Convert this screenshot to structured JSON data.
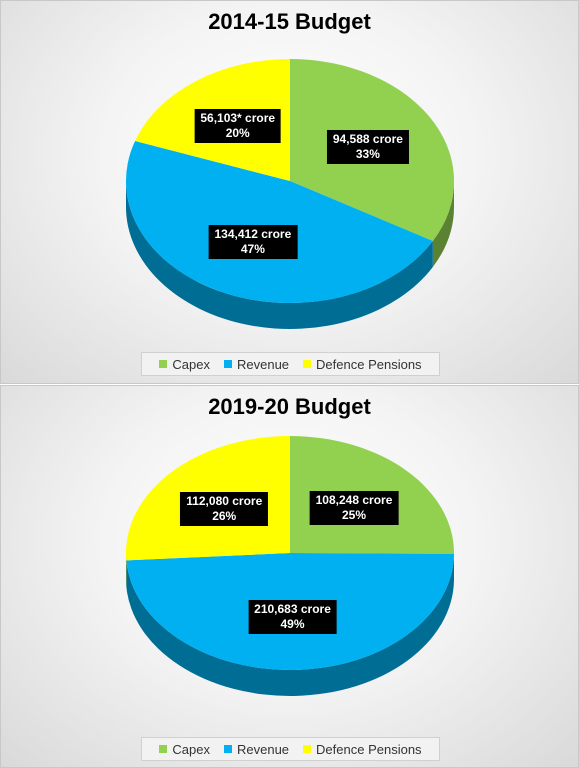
{
  "chart_data": [
    {
      "type": "pie",
      "title": "2014-15 Budget",
      "legend_position": "bottom",
      "slices": [
        {
          "name": "Capex",
          "value": 94588,
          "label": "94,588 crore",
          "percent": "33%",
          "color": "#92d050"
        },
        {
          "name": "Revenue",
          "value": 134412,
          "label": "134,412 crore",
          "percent": "47%",
          "color": "#00b0f0"
        },
        {
          "name": "Defence Pensions",
          "value": 56103,
          "label": "56,103* crore",
          "percent": "20%",
          "color": "#ffff00"
        }
      ]
    },
    {
      "type": "pie",
      "title": "2019-20 Budget",
      "legend_position": "bottom",
      "slices": [
        {
          "name": "Capex",
          "value": 108248,
          "label": "108,248 crore",
          "percent": "25%",
          "color": "#92d050"
        },
        {
          "name": "Revenue",
          "value": 210683,
          "label": "210,683 crore",
          "percent": "49%",
          "color": "#00b0f0"
        },
        {
          "name": "Defence Pensions",
          "value": 112080,
          "label": "112,080 crore",
          "percent": "26%",
          "color": "#ffff00"
        }
      ]
    }
  ]
}
